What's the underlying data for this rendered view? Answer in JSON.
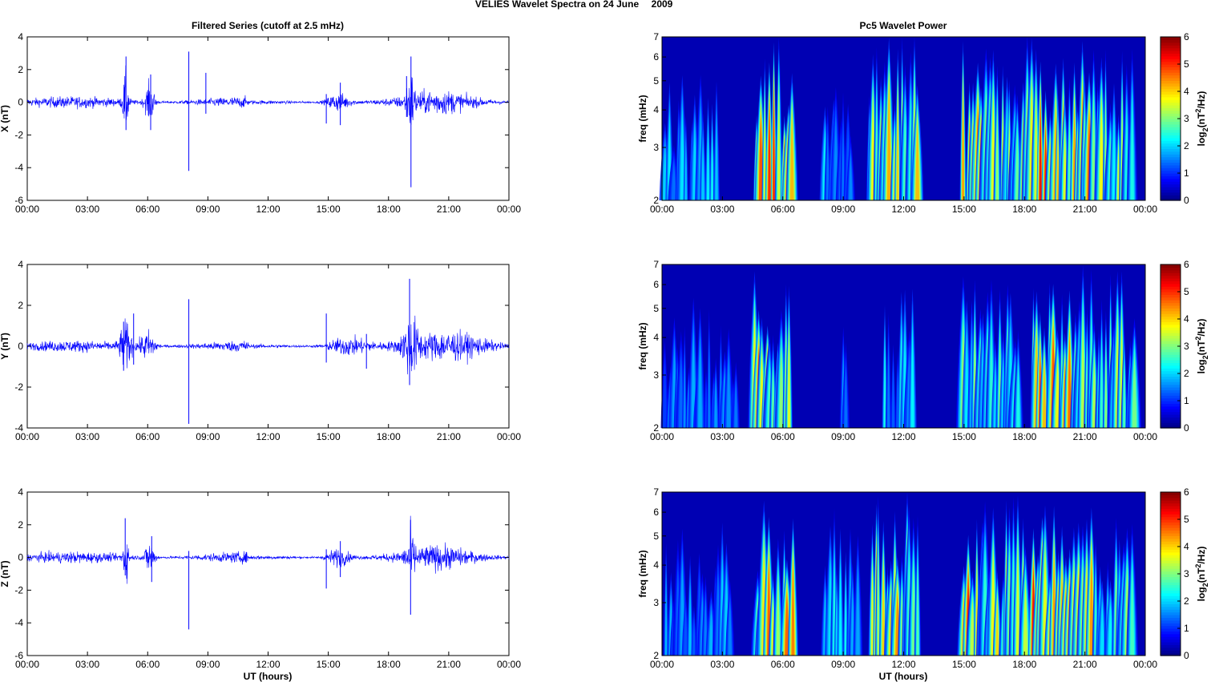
{
  "figure": {
    "suptitle": "VELIES Wavelet Spectra on 24 June",
    "suptitle_year": "2009",
    "left_title": "Filtered Series (cutoff at 2.5 mHz)",
    "right_title": "Pc5 Wavelet Power",
    "bottom_xlabel": "UT (hours)"
  },
  "chart_data": [
    {
      "type": "line",
      "component": "X",
      "ylabel": "X (nT)",
      "color": "#0000ff",
      "xlim": [
        0,
        24
      ],
      "ylim": [
        -6,
        4
      ],
      "yticks": [
        -6,
        -4,
        -2,
        0,
        2,
        4
      ],
      "xticks": [
        "00:00",
        "03:00",
        "06:00",
        "09:00",
        "12:00",
        "15:00",
        "18:00",
        "21:00",
        "00:00"
      ],
      "noise_level_nT": 0.25,
      "bursts": [
        {
          "t": 4.9,
          "amp": 1.2,
          "width": 0.15
        },
        {
          "t": 6.1,
          "amp": 0.8,
          "width": 0.25
        },
        {
          "t": 15.5,
          "amp": 0.35,
          "width": 0.6
        },
        {
          "t": 19.1,
          "amp": 1.1,
          "width": 0.2
        },
        {
          "t": 20.5,
          "amp": 0.3,
          "width": 1.5
        }
      ],
      "spikes": [
        {
          "t": 4.92,
          "min": -1.7,
          "max": 2.8
        },
        {
          "t": 6.15,
          "min": -1.7,
          "max": 1.7
        },
        {
          "t": 8.05,
          "min": -4.2,
          "max": 3.1
        },
        {
          "t": 8.9,
          "min": -0.7,
          "max": 1.8
        },
        {
          "t": 14.9,
          "min": -1.3,
          "max": 0.5
        },
        {
          "t": 15.6,
          "min": -1.4,
          "max": 1.2
        },
        {
          "t": 18.9,
          "min": -0.9,
          "max": 1.6
        },
        {
          "t": 19.12,
          "min": -5.2,
          "max": 2.8
        }
      ]
    },
    {
      "type": "line",
      "component": "Y",
      "ylabel": "Y (nT)",
      "color": "#0000ff",
      "xlim": [
        0,
        24
      ],
      "ylim": [
        -4,
        4
      ],
      "yticks": [
        -4,
        -2,
        0,
        2,
        4
      ],
      "xticks": [
        "00:00",
        "03:00",
        "06:00",
        "09:00",
        "12:00",
        "15:00",
        "18:00",
        "21:00",
        "00:00"
      ],
      "noise_level_nT": 0.2,
      "bursts": [
        {
          "t": 4.9,
          "amp": 0.8,
          "width": 0.3
        },
        {
          "t": 6.0,
          "amp": 0.5,
          "width": 0.4
        },
        {
          "t": 16.0,
          "amp": 0.3,
          "width": 1.0
        },
        {
          "t": 19.1,
          "amp": 0.9,
          "width": 0.35
        },
        {
          "t": 21.0,
          "amp": 0.35,
          "width": 2.0
        }
      ],
      "spikes": [
        {
          "t": 4.8,
          "min": -1.2,
          "max": 1.2
        },
        {
          "t": 5.3,
          "min": -0.9,
          "max": 1.6
        },
        {
          "t": 8.05,
          "min": -3.8,
          "max": 2.3
        },
        {
          "t": 14.9,
          "min": -0.8,
          "max": 1.6
        },
        {
          "t": 16.9,
          "min": -1.1,
          "max": 0.6
        },
        {
          "t": 19.05,
          "min": -1.9,
          "max": 3.3
        }
      ]
    },
    {
      "type": "line",
      "component": "Z",
      "ylabel": "Z (nT)",
      "color": "#0000ff",
      "xlim": [
        0,
        24
      ],
      "ylim": [
        -6,
        4
      ],
      "yticks": [
        -6,
        -4,
        -2,
        0,
        2,
        4
      ],
      "xticks": [
        "00:00",
        "03:00",
        "06:00",
        "09:00",
        "12:00",
        "15:00",
        "18:00",
        "21:00",
        "00:00"
      ],
      "noise_level_nT": 0.25,
      "bursts": [
        {
          "t": 4.9,
          "amp": 1.0,
          "width": 0.15
        },
        {
          "t": 6.1,
          "amp": 0.7,
          "width": 0.25
        },
        {
          "t": 15.5,
          "amp": 0.35,
          "width": 0.6
        },
        {
          "t": 19.1,
          "amp": 1.0,
          "width": 0.2
        },
        {
          "t": 20.5,
          "amp": 0.3,
          "width": 1.5
        }
      ],
      "spikes": [
        {
          "t": 4.88,
          "min": -1.1,
          "max": 2.4
        },
        {
          "t": 6.2,
          "min": -1.5,
          "max": 1.3
        },
        {
          "t": 8.05,
          "min": -4.4,
          "max": 0.4
        },
        {
          "t": 14.9,
          "min": -1.9,
          "max": 0.5
        },
        {
          "t": 15.6,
          "min": -1.2,
          "max": 1.0
        },
        {
          "t": 19.1,
          "min": -3.5,
          "max": 2.3
        }
      ]
    },
    {
      "type": "heatmap",
      "component": "X",
      "ylabel": "freq (mHz)",
      "yscale": "log",
      "ylim_mHz": [
        2,
        7
      ],
      "yticks": [
        2,
        3,
        4,
        5,
        6,
        7
      ],
      "xlim": [
        0,
        24
      ],
      "xticks": [
        "00:00",
        "03:00",
        "06:00",
        "09:00",
        "12:00",
        "15:00",
        "18:00",
        "21:00",
        "00:00"
      ],
      "colorbar_label": "log2(nT^2/Hz)",
      "clim": [
        0,
        6
      ],
      "colorbar_ticks": [
        0,
        1,
        2,
        3,
        4,
        5,
        6
      ],
      "colormap": "jet",
      "activity_intervals_power": [
        [
          4.6,
          5.6,
          5.2
        ],
        [
          5.7,
          6.6,
          5.5
        ],
        [
          0.1,
          2.8,
          2.4
        ],
        [
          8.0,
          9.5,
          2.3
        ],
        [
          10.2,
          12.8,
          4.4
        ],
        [
          14.9,
          16.2,
          5.2
        ],
        [
          16.2,
          18.2,
          4.2
        ],
        [
          18.3,
          19.4,
          5.6
        ],
        [
          19.4,
          21.3,
          5.0
        ],
        [
          21.3,
          23.4,
          3.8
        ]
      ]
    },
    {
      "type": "heatmap",
      "component": "Y",
      "ylabel": "freq (mHz)",
      "yscale": "log",
      "ylim_mHz": [
        2,
        7
      ],
      "yticks": [
        2,
        3,
        4,
        5,
        6,
        7
      ],
      "xlim": [
        0,
        24
      ],
      "xticks": [
        "00:00",
        "03:00",
        "06:00",
        "09:00",
        "12:00",
        "15:00",
        "18:00",
        "21:00",
        "00:00"
      ],
      "colorbar_label": "log2(nT^2/Hz)",
      "clim": [
        0,
        6
      ],
      "colorbar_ticks": [
        0,
        1,
        2,
        3,
        4,
        5,
        6
      ],
      "colormap": "jet",
      "activity_intervals_power": [
        [
          4.5,
          5.3,
          5.6
        ],
        [
          5.3,
          6.4,
          4.6
        ],
        [
          0.1,
          3.8,
          2.0
        ],
        [
          8.9,
          9.2,
          1.8
        ],
        [
          11.0,
          12.6,
          2.4
        ],
        [
          14.9,
          17.8,
          3.4
        ],
        [
          18.3,
          19.3,
          5.8
        ],
        [
          19.3,
          20.4,
          4.9
        ],
        [
          20.4,
          23.5,
          3.8
        ]
      ]
    },
    {
      "type": "heatmap",
      "component": "Z",
      "ylabel": "freq (mHz)",
      "yscale": "log",
      "ylim_mHz": [
        2,
        7
      ],
      "yticks": [
        2,
        3,
        4,
        5,
        6,
        7
      ],
      "xlim": [
        0,
        24
      ],
      "xticks": [
        "00:00",
        "03:00",
        "06:00",
        "09:00",
        "12:00",
        "15:00",
        "18:00",
        "21:00",
        "00:00"
      ],
      "colorbar_label": "log2(nT^2/Hz)",
      "clim": [
        0,
        6
      ],
      "colorbar_ticks": [
        0,
        1,
        2,
        3,
        4,
        5,
        6
      ],
      "colormap": "jet",
      "activity_intervals_power": [
        [
          4.6,
          5.6,
          5.2
        ],
        [
          5.7,
          6.6,
          5.6
        ],
        [
          0.1,
          3.5,
          2.3
        ],
        [
          8.0,
          9.8,
          2.6
        ],
        [
          10.3,
          12.8,
          4.8
        ],
        [
          14.9,
          16.0,
          5.3
        ],
        [
          16.0,
          18.2,
          4.3
        ],
        [
          18.3,
          19.4,
          5.7
        ],
        [
          19.4,
          21.4,
          4.8
        ],
        [
          21.4,
          23.4,
          3.6
        ]
      ]
    }
  ]
}
